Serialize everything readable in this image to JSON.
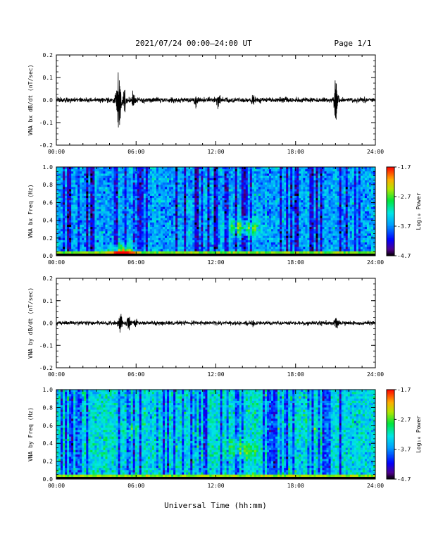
{
  "header": {
    "title": "2021/07/24  00:00–24:00 UT",
    "page": "Page 1/1"
  },
  "x_axis": {
    "label": "Universal Time (hh:mm)",
    "ticks": [
      "00:00",
      "06:00",
      "12:00",
      "18:00",
      "24:00"
    ],
    "range_hours": [
      0,
      24
    ]
  },
  "chart_data": [
    {
      "type": "line",
      "id": "bx-dbdt",
      "ylabel": "VNA bx dB/dt (nT/sec)",
      "ylim": [
        -0.2,
        0.2
      ],
      "yticks": [
        "0.2",
        "0.1",
        "0.0",
        "-0.1",
        "-0.2"
      ],
      "ytick_values": [
        0.2,
        0.1,
        0.0,
        -0.1,
        -0.2
      ],
      "baseline_amplitude": 0.01,
      "events": [
        {
          "hour": 4.55,
          "max": 0.05,
          "min": -0.07
        },
        {
          "hour": 4.75,
          "max": 0.1,
          "min": -0.14
        },
        {
          "hour": 5.1,
          "max": 0.06,
          "min": -0.05
        },
        {
          "hour": 5.8,
          "max": 0.03,
          "min": -0.03
        },
        {
          "hour": 10.5,
          "max": 0.02,
          "min": -0.04
        },
        {
          "hour": 12.2,
          "max": 0.02,
          "min": -0.03
        },
        {
          "hour": 14.8,
          "max": 0.02,
          "min": -0.03
        },
        {
          "hour": 21.05,
          "max": 0.11,
          "min": -0.1
        }
      ]
    },
    {
      "type": "heatmap",
      "id": "bx-spectrogram",
      "ylabel": "VNA bx Freq (Hz)",
      "ylim": [
        0.0,
        1.0
      ],
      "yticks": [
        "1.0",
        "0.8",
        "0.6",
        "0.4",
        "0.2",
        "0.0"
      ],
      "ytick_values": [
        1.0,
        0.8,
        0.6,
        0.4,
        0.2,
        0.0
      ],
      "colorbar": {
        "label": "Log₁₀ Power",
        "ticks": [
          "-1.7",
          "-2.7",
          "-3.7",
          "-4.7"
        ],
        "tick_values": [
          -1.7,
          -2.7,
          -3.7,
          -4.7
        ],
        "range": [
          -4.7,
          -1.7
        ]
      },
      "background_level": -3.7,
      "low_frequency_level": -2.6,
      "hotspots": [
        {
          "hour": 13.6,
          "freq": 0.33,
          "level": -3.0
        },
        {
          "hour": 14.6,
          "freq": 0.3,
          "level": -3.0
        },
        {
          "hour": 5.0,
          "freq": 0.02,
          "level": -2.2
        }
      ]
    },
    {
      "type": "line",
      "id": "by-dbdt",
      "ylabel": "VNA by dB/dt (nT/sec)",
      "ylim": [
        -0.2,
        0.2
      ],
      "yticks": [
        "0.2",
        "0.1",
        "0.0",
        "-0.1",
        "-0.2"
      ],
      "ytick_values": [
        0.2,
        0.1,
        0.0,
        -0.1,
        -0.2
      ],
      "baseline_amplitude": 0.008,
      "events": [
        {
          "hour": 4.8,
          "max": 0.05,
          "min": -0.05
        },
        {
          "hour": 5.4,
          "max": 0.03,
          "min": -0.03
        },
        {
          "hour": 5.9,
          "max": 0.02,
          "min": -0.02
        },
        {
          "hour": 14.8,
          "max": 0.02,
          "min": -0.02
        },
        {
          "hour": 21.05,
          "max": 0.03,
          "min": -0.03
        }
      ]
    },
    {
      "type": "heatmap",
      "id": "by-spectrogram",
      "ylabel": "VNA by Freq (Hz)",
      "ylim": [
        0.0,
        1.0
      ],
      "yticks": [
        "1.0",
        "0.8",
        "0.6",
        "0.4",
        "0.2",
        "0.0"
      ],
      "ytick_values": [
        1.0,
        0.8,
        0.6,
        0.4,
        0.2,
        0.0
      ],
      "colorbar": {
        "label": "Log₁₀ Power",
        "ticks": [
          "-1.7",
          "-2.7",
          "-3.7",
          "-4.7"
        ],
        "tick_values": [
          -1.7,
          -2.7,
          -3.7,
          -4.7
        ],
        "range": [
          -4.7,
          -1.7
        ]
      },
      "background_level": -3.4,
      "low_frequency_level": -2.5,
      "hotspots": [
        {
          "hour": 5.5,
          "freq": 0.55,
          "level": -3.0
        },
        {
          "hour": 13.4,
          "freq": 0.35,
          "level": -2.9
        },
        {
          "hour": 14.5,
          "freq": 0.32,
          "level": -3.0
        },
        {
          "hour": 19.5,
          "freq": 0.6,
          "level": -3.1
        }
      ]
    }
  ]
}
